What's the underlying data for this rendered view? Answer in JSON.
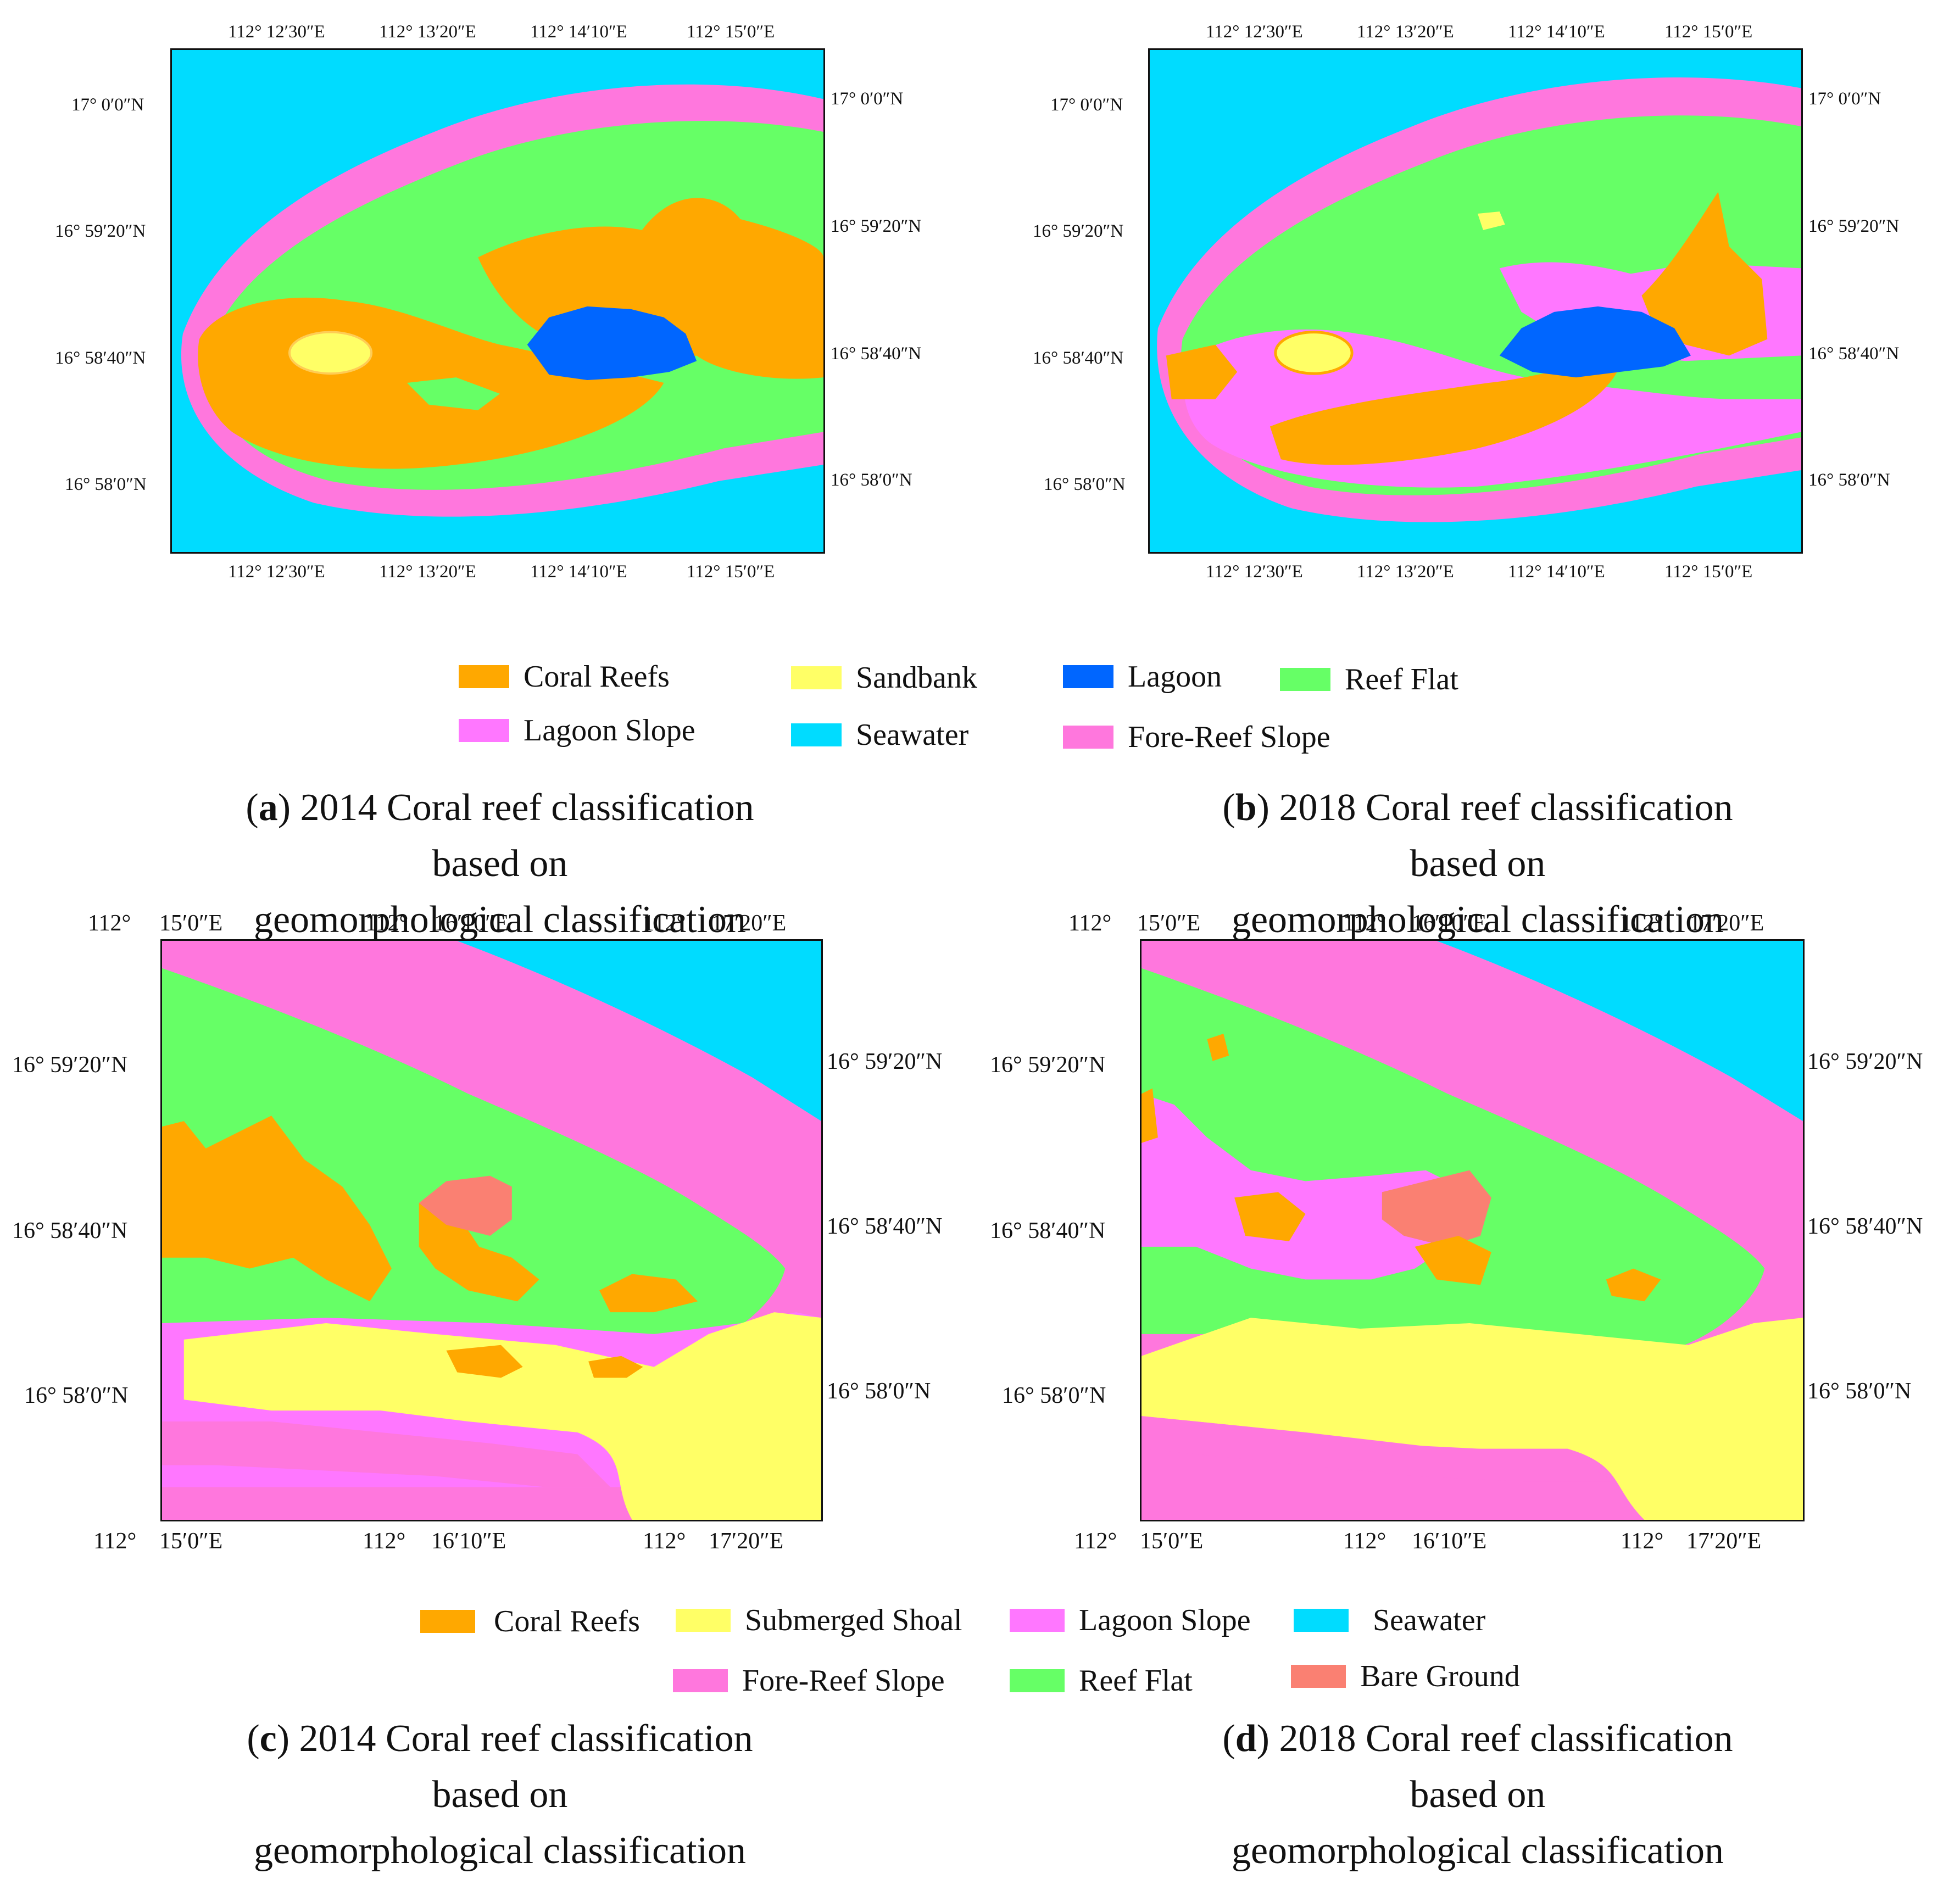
{
  "colors": {
    "coral_reefs": "#ffa800",
    "sandbank": "#ffff66",
    "lagoon": "#0066ff",
    "reef_flat": "#66ff66",
    "lagoon_slope": "#ff77ff",
    "seawater": "#00dcff",
    "fore_reef_slope": "#ff77dd",
    "submerged_shoal": "#ffff66",
    "bare_ground": "#fa8072"
  },
  "panels": {
    "a": {
      "top_lon": [
        "112°  12′30″E",
        "112°  13′20″E",
        "112°  14′10″E",
        "112°  15′0″E"
      ],
      "bottom_lon": [
        "112°  12′30″E",
        "112°  13′20″E",
        "112°  14′10″E",
        "112°  15′0″E"
      ],
      "left_lat": [
        "17°  0′0″N",
        "16°  59′20″N",
        "16°  58′40″N",
        "16°  58′0″N"
      ],
      "right_lat": [
        "17°  0′0″N",
        "16°  59′20″N",
        "16°  58′40″N",
        "16°  58′0″N"
      ]
    },
    "b": {
      "top_lon": [
        "112°  12′30″E",
        "112°  13′20″E",
        "112°  14′10″E",
        "112°  15′0″E"
      ],
      "bottom_lon": [
        "112°  12′30″E",
        "112°  13′20″E",
        "112°  14′10″E",
        "112°  15′0″E"
      ],
      "left_lat": [
        "17°  0′0″N",
        "16°  59′20″N",
        "16°  58′40″N",
        "16°  58′0″N"
      ],
      "right_lat": [
        "17°  0′0″N",
        "16°  59′20″N",
        "16°  58′40″N",
        "16°  58′0″N"
      ]
    },
    "c": {
      "top_lon": [
        "112°",
        "15′0″E",
        "112°",
        "16′10″E",
        "112°",
        "17′20″E"
      ],
      "bottom_lon": [
        "112°",
        "15′0″E",
        "112°",
        "16′10″E",
        "112°",
        "17′20″E"
      ],
      "left_lat": [
        "16°  59′20″N",
        "16°  58′40″N",
        "16°  58′0″N"
      ],
      "right_lat": [
        "16°  59′20″N",
        "16°  58′40″N",
        "16°  58′0″N"
      ]
    },
    "d": {
      "top_lon": [
        "112°",
        "15′0″E",
        "112°",
        "16′10″E",
        "112°",
        "17′20″E"
      ],
      "bottom_lon": [
        "112°",
        "15′0″E",
        "112°",
        "16′10″E",
        "112°",
        "17′20″E"
      ],
      "left_lat": [
        "16°  59′20″N",
        "16°  58′40″N",
        "16°  58′0″N"
      ],
      "right_lat": [
        "16°  59′20″N",
        "16°  58′40″N",
        "16°  58′0″N"
      ]
    }
  },
  "legend_top": {
    "coral_reefs": "Coral Reefs",
    "sandbank": "Sandbank",
    "lagoon": "Lagoon",
    "reef_flat": "Reef Flat",
    "lagoon_slope": "Lagoon Slope",
    "seawater": "Seawater",
    "fore_reef_slope": "Fore-Reef Slope"
  },
  "legend_bottom": {
    "coral_reefs": "Coral Reefs",
    "submerged_shoal": "Submerged Shoal",
    "lagoon_slope": "Lagoon Slope",
    "seawater": "Seawater",
    "fore_reef_slope": "Fore-Reef Slope",
    "reef_flat": "Reef Flat",
    "bare_ground": "Bare Ground"
  },
  "captions": {
    "a": {
      "letter": "a",
      "line1": " 2014 Coral reef classification based on",
      "line2": "geomorphological classification"
    },
    "b": {
      "letter": "b",
      "line1": " 2018 Coral reef classification based on",
      "line2": "geomorphological classification"
    },
    "c": {
      "letter": "c",
      "line1": " 2014 Coral reef classification based on",
      "line2": "geomorphological classification"
    },
    "d": {
      "letter": "d",
      "line1": " 2018 Coral reef classification based on",
      "line2": "geomorphological classification"
    }
  }
}
